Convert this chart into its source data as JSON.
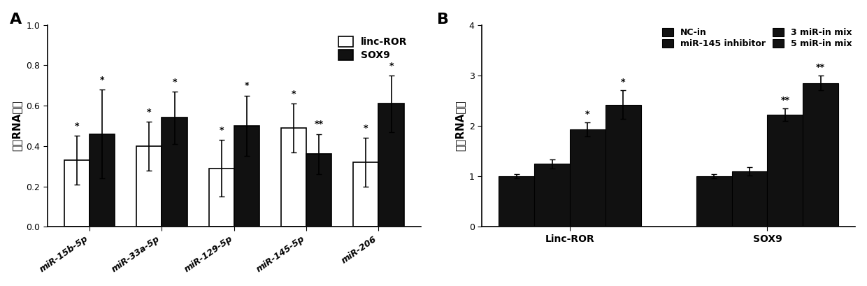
{
  "panel_A": {
    "label": "A",
    "categories": [
      "miR-15b-5p",
      "miR-33a-5p",
      "miR-129-5p",
      "miR-145-5p",
      "miR-206"
    ],
    "white_bars": [
      0.33,
      0.4,
      0.29,
      0.49,
      0.32
    ],
    "black_bars": [
      0.46,
      0.54,
      0.5,
      0.36,
      0.61
    ],
    "white_errors": [
      0.12,
      0.12,
      0.14,
      0.12,
      0.12
    ],
    "black_errors": [
      0.22,
      0.13,
      0.15,
      0.1,
      0.14
    ],
    "white_sig": [
      "*",
      "*",
      "*",
      "*",
      "*"
    ],
    "black_sig": [
      "*",
      "*",
      "*",
      "**",
      "*"
    ],
    "ylabel": "相关RNA水平",
    "ylim": [
      0,
      1.0
    ],
    "yticks": [
      0.0,
      0.2,
      0.4,
      0.6,
      0.8,
      1.0
    ],
    "legend_labels": [
      "linc-ROR",
      "SOX9"
    ],
    "bar_width": 0.35
  },
  "panel_B": {
    "label": "B",
    "group_labels": [
      "Linc-ROR",
      "SOX9"
    ],
    "series_labels": [
      "NC-in",
      "miR-145 inhibitor",
      "3 miR-in mix",
      "5 miR-in mix"
    ],
    "values": [
      [
        1.0,
        1.25,
        1.93,
        2.42
      ],
      [
        1.0,
        1.1,
        2.22,
        2.85
      ]
    ],
    "errors": [
      [
        0.04,
        0.09,
        0.14,
        0.28
      ],
      [
        0.04,
        0.08,
        0.12,
        0.15
      ]
    ],
    "sig": [
      [
        "",
        "",
        "*",
        "*"
      ],
      [
        "",
        "",
        "**",
        "**"
      ]
    ],
    "ylabel": "相关RNA水平",
    "ylim": [
      0,
      4.0
    ],
    "yticks": [
      0,
      1,
      2,
      3,
      4
    ],
    "bar_width": 0.18
  },
  "background_color": "#ffffff",
  "bar_black": "#111111",
  "bar_white": "#ffffff"
}
